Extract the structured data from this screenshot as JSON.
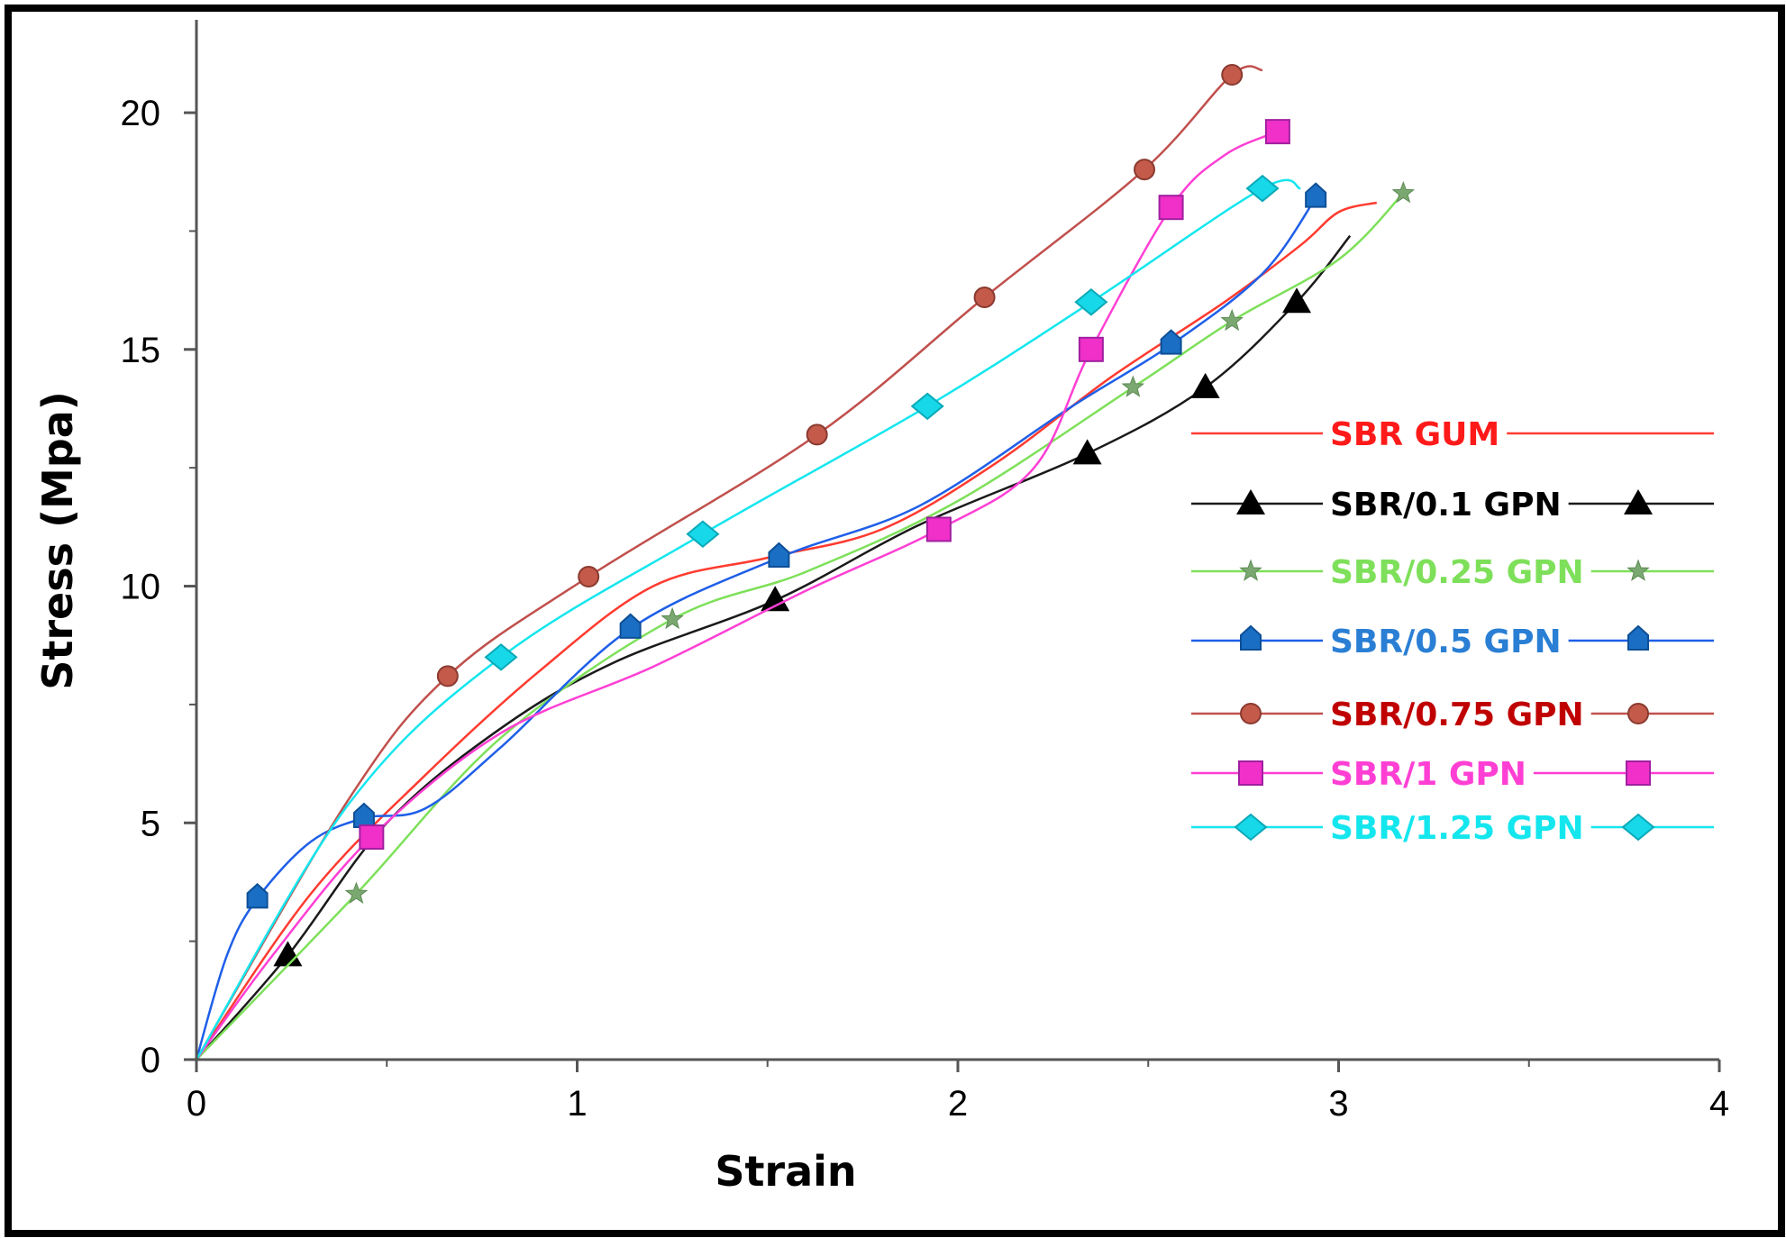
{
  "chart_data": {
    "type": "line",
    "title": "",
    "xlabel": "Strain",
    "ylabel": "Stress (Mpa)",
    "xlim": [
      0,
      4
    ],
    "ylim": [
      0,
      22
    ],
    "xticks": [
      0,
      1,
      2,
      3,
      4
    ],
    "xtick_labels": [
      "0",
      "1",
      "2",
      "3",
      "4"
    ],
    "yticks": [
      0,
      5,
      10,
      15,
      20
    ],
    "ytick_labels": [
      "0",
      "5",
      "10",
      "15",
      "20"
    ],
    "grid": false,
    "legend_position": "right",
    "series": [
      {
        "name": "SBR GUM",
        "color": "#ff3b30",
        "marker": "none",
        "x": [
          0,
          0.3,
          0.6,
          0.9,
          1.2,
          1.5,
          1.8,
          2.1,
          2.4,
          2.7,
          2.9,
          3.0,
          3.1
        ],
        "y": [
          0,
          3.5,
          6.0,
          8.2,
          10.0,
          10.6,
          11.2,
          12.6,
          14.4,
          16.0,
          17.2,
          17.9,
          18.1
        ],
        "markers_x": [],
        "markers_y": []
      },
      {
        "name": "SBR/0.1 GPN",
        "color": "#1a1a1a",
        "marker": "triangle",
        "x": [
          0,
          0.24,
          0.5,
          0.8,
          1.1,
          1.52,
          1.9,
          2.34,
          2.65,
          2.89,
          3.03
        ],
        "y": [
          0,
          2.2,
          5.0,
          7.0,
          8.4,
          9.7,
          11.3,
          12.8,
          14.2,
          16.0,
          17.4
        ],
        "markers_x": [
          0.24,
          1.52,
          2.34,
          2.65,
          2.89
        ],
        "markers_y": [
          2.2,
          9.7,
          12.8,
          14.2,
          16.0
        ]
      },
      {
        "name": "SBR/0.25 GPN",
        "color": "#7ee05a",
        "marker": "star",
        "x": [
          0,
          0.42,
          0.8,
          1.25,
          1.6,
          2.0,
          2.46,
          2.72,
          3.0,
          3.17
        ],
        "y": [
          0,
          3.5,
          6.8,
          9.3,
          10.3,
          11.8,
          14.2,
          15.6,
          16.9,
          18.3
        ],
        "markers_x": [
          0.42,
          1.25,
          2.46,
          2.72,
          3.17
        ],
        "markers_y": [
          3.5,
          9.3,
          14.2,
          15.6,
          18.3
        ]
      },
      {
        "name": "SBR/0.5 GPN",
        "color": "#1f5fe8",
        "marker": "pentagon",
        "x": [
          0,
          0.08,
          0.16,
          0.3,
          0.44,
          0.6,
          0.8,
          1.14,
          1.53,
          1.9,
          2.3,
          2.56,
          2.8,
          2.94
        ],
        "y": [
          0,
          2.2,
          3.4,
          4.6,
          5.1,
          5.3,
          6.6,
          9.1,
          10.6,
          11.7,
          13.8,
          15.1,
          16.6,
          18.2
        ],
        "markers_x": [
          0.16,
          0.44,
          1.14,
          1.53,
          2.56,
          2.94
        ],
        "markers_y": [
          3.4,
          5.1,
          9.1,
          10.6,
          15.1,
          18.2
        ]
      },
      {
        "name": "SBR/0.75 GPN",
        "color": "#c0504d",
        "marker": "circle",
        "x": [
          0,
          0.4,
          0.66,
          1.03,
          1.63,
          2.07,
          2.49,
          2.72,
          2.8
        ],
        "y": [
          0,
          5.5,
          8.1,
          10.2,
          13.2,
          16.1,
          18.8,
          20.8,
          20.9
        ],
        "markers_x": [
          0.66,
          1.03,
          1.63,
          2.07,
          2.49,
          2.72
        ],
        "markers_y": [
          8.1,
          10.2,
          13.2,
          16.1,
          18.8,
          20.8
        ]
      },
      {
        "name": "SBR/1 GPN",
        "color": "#ff3fd4",
        "marker": "square",
        "x": [
          0,
          0.2,
          0.46,
          0.8,
          1.2,
          1.6,
          1.95,
          2.2,
          2.35,
          2.56,
          2.7,
          2.84
        ],
        "y": [
          0,
          2.2,
          4.7,
          6.9,
          8.3,
          9.9,
          11.2,
          12.5,
          15.0,
          18.0,
          19.1,
          19.6
        ],
        "markers_x": [
          0.46,
          1.95,
          2.35,
          2.56,
          2.84
        ],
        "markers_y": [
          4.7,
          11.2,
          15.0,
          18.0,
          19.6
        ]
      },
      {
        "name": "SBR/1.25 GPN",
        "color": "#14e6ee",
        "marker": "diamond",
        "x": [
          0,
          0.4,
          0.8,
          1.33,
          1.92,
          2.35,
          2.8,
          2.9
        ],
        "y": [
          0,
          5.4,
          8.5,
          11.1,
          13.8,
          16.0,
          18.4,
          18.4
        ],
        "markers_x": [
          0.8,
          1.33,
          1.92,
          2.35,
          2.8
        ],
        "markers_y": [
          8.5,
          11.1,
          13.8,
          16.0,
          18.4
        ]
      }
    ]
  }
}
